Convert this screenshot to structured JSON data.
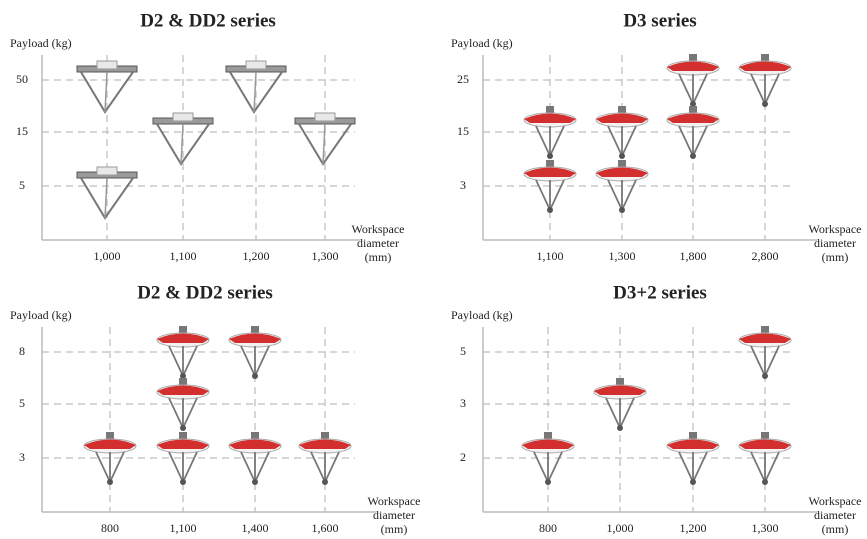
{
  "panels": [
    {
      "title": "D2 & DD2 series",
      "y_label": "Payload (kg)",
      "x_label": [
        "Workspace",
        "diameter",
        "(mm)"
      ],
      "y_ticks": [
        "50",
        "15",
        "5"
      ],
      "x_ticks": [
        "1,000",
        "1,100",
        "1,200",
        "1,300"
      ]
    },
    {
      "title": "D3 series",
      "y_label": "Payload (kg)",
      "x_label": [
        "Workspace",
        "diameter",
        "(mm)"
      ],
      "y_ticks": [
        "25",
        "15",
        "3"
      ],
      "x_ticks": [
        "1,100",
        "1,300",
        "1,800",
        "2,800"
      ]
    },
    {
      "title": "D2 & DD2 series",
      "y_label": "Payload (kg)",
      "x_label": [
        "Workspace",
        "diameter",
        "(mm)"
      ],
      "y_ticks": [
        "8",
        "5",
        "3"
      ],
      "x_ticks": [
        "800",
        "1,100",
        "1,400",
        "1,600"
      ]
    },
    {
      "title": "D3+2 series",
      "y_label": "Payload (kg)",
      "x_label": [
        "Workspace",
        "diameter",
        "(mm)"
      ],
      "y_ticks": [
        "5",
        "3",
        "2"
      ],
      "x_ticks": [
        "800",
        "1,000",
        "1,200",
        "1,300"
      ]
    }
  ]
}
